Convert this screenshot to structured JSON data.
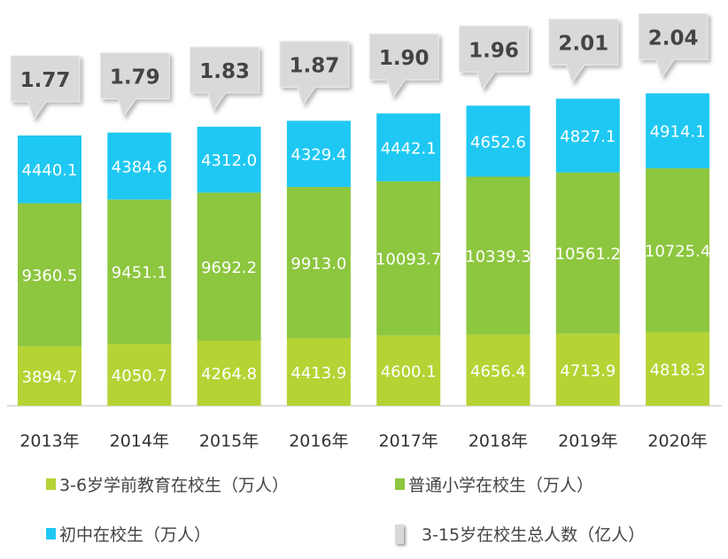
{
  "chart_data": {
    "type": "bar",
    "stacked": true,
    "categories": [
      "2013年",
      "2014年",
      "2015年",
      "2016年",
      "2017年",
      "2018年",
      "2019年",
      "2020年"
    ],
    "series": [
      {
        "name": "3-6岁学前教育在校生（万人）",
        "color": "#b5d334",
        "values": [
          3894.7,
          4050.7,
          4264.8,
          4413.9,
          4600.1,
          4656.4,
          4713.9,
          4818.3
        ]
      },
      {
        "name": "普通小学在校生（万人）",
        "color": "#8dc63f",
        "values": [
          9360.5,
          9451.1,
          9692.2,
          9913.0,
          10093.7,
          10339.3,
          10561.2,
          10725.4
        ]
      },
      {
        "name": "初中在校生（万人）",
        "color": "#1fc8f2",
        "values": [
          4440.1,
          4384.6,
          4312.0,
          4329.4,
          4442.1,
          4652.6,
          4827.1,
          4914.1
        ]
      }
    ],
    "totals": {
      "name": "3-15岁在校生总人数（亿人）",
      "color": "#d9d9d9",
      "values": [
        "1.77",
        "1.79",
        "1.83",
        "1.87",
        "1.90",
        "1.96",
        "2.01",
        "2.04"
      ]
    },
    "title": "",
    "xlabel": "",
    "ylabel": "",
    "grid": false,
    "legend_position": "bottom"
  },
  "legend": [
    "3-6岁学前教育在校生（万人）",
    "普通小学在校生（万人）",
    "初中在校生（万人）",
    "3-15岁在校生总人数（亿人）"
  ]
}
